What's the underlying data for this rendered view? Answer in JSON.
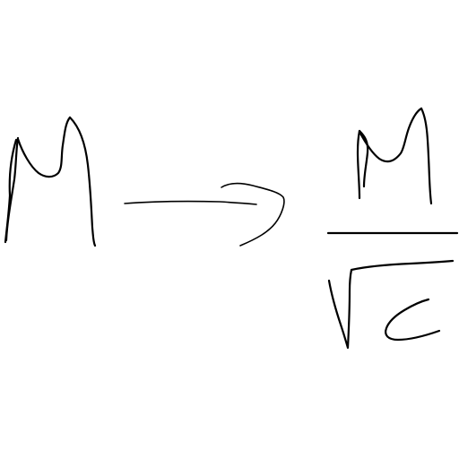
{
  "sketch": {
    "ink_color": "#000000",
    "background_color": "#ffffff",
    "content": "handwritten-notation",
    "left_symbol": "M",
    "arrow": "right-hooked-arrow",
    "right_numerator": "M",
    "right_denominator": "c",
    "right_operator": "square-root"
  }
}
